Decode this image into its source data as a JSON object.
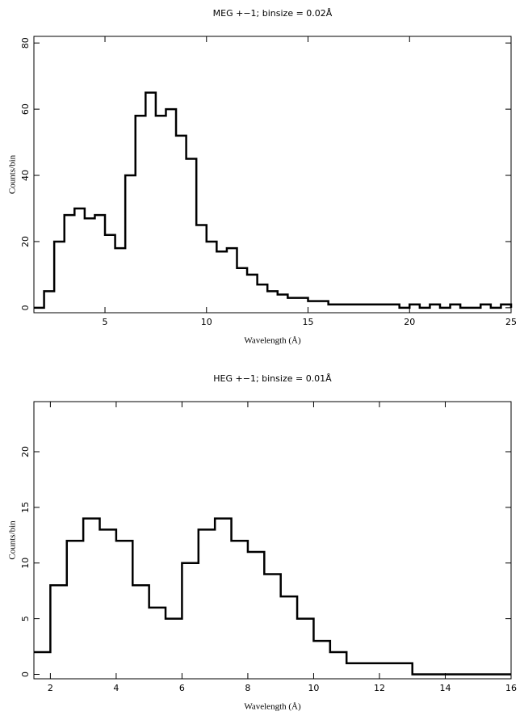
{
  "chart_data": [
    {
      "type": "line",
      "title": "MEG +−1; binsize = 0.02Å",
      "x_label": "Wavelength (Å)",
      "y_label": "Counts/bin",
      "x": [
        1.5,
        2.0,
        2.5,
        3.0,
        3.5,
        4.0,
        4.5,
        5.0,
        5.5,
        6.0,
        6.5,
        7.0,
        7.5,
        8.0,
        8.5,
        9.0,
        9.5,
        10.0,
        10.5,
        11.0,
        11.5,
        12.0,
        12.5,
        13.0,
        13.5,
        14.0,
        14.5,
        15.0,
        15.5,
        16.0,
        16.5,
        17.0,
        17.5,
        18.0,
        18.5,
        19.0,
        19.5,
        20.0,
        20.5,
        21.0,
        21.5,
        22.0,
        22.5,
        23.0,
        23.5,
        24.0,
        24.5,
        25.0
      ],
      "values": [
        0,
        5,
        20,
        28,
        30,
        27,
        28,
        22,
        18,
        40,
        58,
        65,
        58,
        60,
        52,
        45,
        25,
        20,
        17,
        18,
        12,
        10,
        7,
        5,
        4,
        3,
        3,
        2,
        2,
        1,
        1,
        1,
        1,
        1,
        1,
        1,
        0,
        1,
        0,
        1,
        0,
        1,
        0,
        0,
        1,
        0,
        1,
        0
      ],
      "color": "#000000",
      "xlim": [
        1.5,
        25
      ],
      "ylim": [
        -1.5,
        82
      ],
      "xticks": [
        5,
        10,
        15,
        20,
        25
      ],
      "yticks": [
        0,
        20,
        40,
        60,
        80
      ]
    },
    {
      "type": "line",
      "title": "HEG +−1; binsize = 0.01Å",
      "x_label": "Wavelength (Å)",
      "y_label": "Counts/bin",
      "x": [
        1.5,
        2.0,
        2.5,
        3.0,
        3.5,
        4.0,
        4.5,
        5.0,
        5.5,
        6.0,
        6.5,
        7.0,
        7.5,
        8.0,
        8.5,
        9.0,
        9.5,
        10.0,
        10.5,
        11.0,
        11.5,
        12.0,
        12.5,
        13.0,
        13.5,
        14.0,
        14.5,
        15.0,
        15.5,
        16.0
      ],
      "values": [
        2,
        8,
        12,
        14,
        13,
        12,
        8,
        6,
        5,
        10,
        13,
        14,
        12,
        11,
        9,
        7,
        5,
        3,
        2,
        1,
        1,
        1,
        1,
        0,
        0,
        0,
        0,
        0,
        0,
        0
      ],
      "color": "#000000",
      "xlim": [
        1.5,
        16
      ],
      "ylim": [
        -0.4,
        24.5
      ],
      "xticks": [
        2,
        4,
        6,
        8,
        10,
        12,
        14,
        16
      ],
      "yticks": [
        0,
        5,
        10,
        15,
        20
      ]
    }
  ]
}
